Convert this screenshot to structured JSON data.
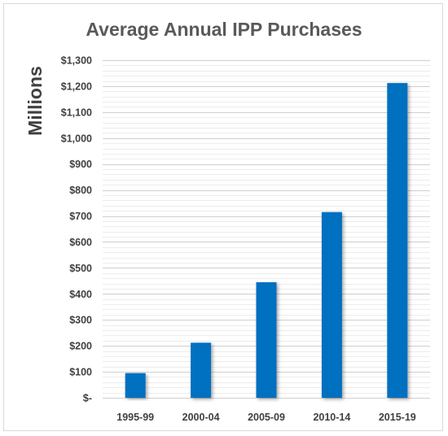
{
  "chart_data": {
    "type": "bar",
    "title": "Average Annual IPP Purchases",
    "ylabel": "Millions",
    "xlabel": "",
    "categories": [
      "1995-99",
      "2000-04",
      "2005-09",
      "2010-14",
      "2015-19"
    ],
    "values": [
      95,
      212,
      445,
      715,
      1212
    ],
    "ylim": [
      0,
      1300
    ],
    "y_ticks": [
      {
        "value": 0,
        "label": "$-"
      },
      {
        "value": 100,
        "label": "$100"
      },
      {
        "value": 200,
        "label": "$200"
      },
      {
        "value": 300,
        "label": "$300"
      },
      {
        "value": 400,
        "label": "$400"
      },
      {
        "value": 500,
        "label": "$500"
      },
      {
        "value": 600,
        "label": "$600"
      },
      {
        "value": 700,
        "label": "$700"
      },
      {
        "value": 800,
        "label": "$800"
      },
      {
        "value": 900,
        "label": "$900"
      },
      {
        "value": 1000,
        "label": "$1,000"
      },
      {
        "value": 1100,
        "label": "$1,100"
      },
      {
        "value": 1200,
        "label": "$1,200"
      },
      {
        "value": 1300,
        "label": "$1,300"
      }
    ],
    "grid": true,
    "legend": "none",
    "bar_color": "#0070c0"
  }
}
